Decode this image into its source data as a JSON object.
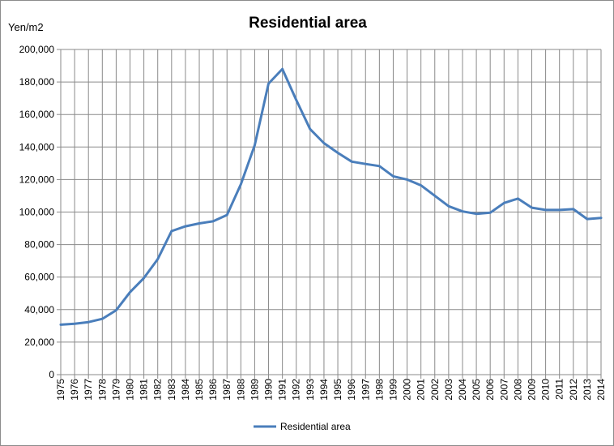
{
  "chart_data": {
    "type": "line",
    "title": "Residential area",
    "ylabel": "Yen/m2",
    "xlabel": "",
    "ylim": [
      0,
      200000
    ],
    "yticks": [
      0,
      20000,
      40000,
      60000,
      80000,
      100000,
      120000,
      140000,
      160000,
      180000,
      200000
    ],
    "ytick_labels": [
      "0",
      "20,000",
      "40,000",
      "60,000",
      "80,000",
      "100,000",
      "120,000",
      "140,000",
      "160,000",
      "180,000",
      "200,000"
    ],
    "grid": true,
    "legend_position": "bottom",
    "categories": [
      "1975",
      "1976",
      "1977",
      "1978",
      "1979",
      "1980",
      "1981",
      "1982",
      "1983",
      "1984",
      "1985",
      "1986",
      "1987",
      "1988",
      "1989",
      "1990",
      "1991",
      "1992",
      "1993",
      "1994",
      "1995",
      "1996",
      "1997",
      "1998",
      "1999",
      "2000",
      "2001",
      "2002",
      "2003",
      "2004",
      "2005",
      "2006",
      "2007",
      "2008",
      "2009",
      "2010",
      "2011",
      "2012",
      "2013",
      "2014"
    ],
    "series": [
      {
        "name": "Residential area",
        "color": "#4a7ebb",
        "values": [
          30700,
          31300,
          32300,
          34300,
          39600,
          50700,
          59400,
          71000,
          88300,
          91200,
          93000,
          94300,
          98200,
          117000,
          141000,
          179000,
          188000,
          169000,
          151000,
          142400,
          136400,
          131000,
          129600,
          128300,
          122000,
          120000,
          116400,
          110000,
          103600,
          100400,
          98900,
          99600,
          105600,
          108300,
          102700,
          101300,
          101300,
          101800,
          95700,
          96400
        ]
      }
    ]
  }
}
